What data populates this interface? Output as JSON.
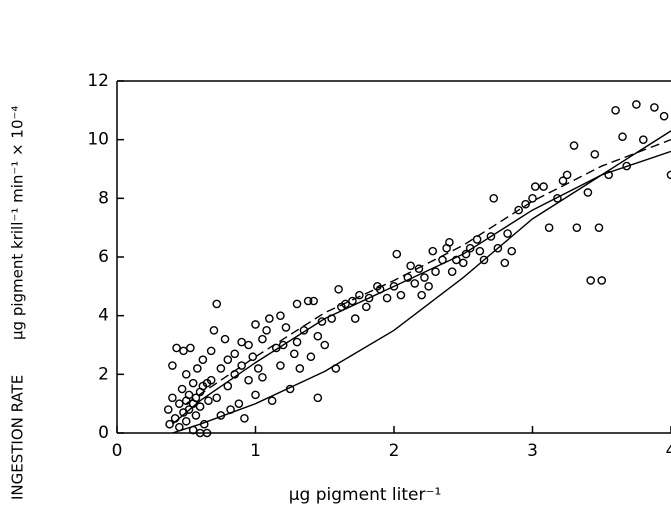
{
  "chart_data": {
    "type": "scatter",
    "x_label": "μg pigment liter⁻¹",
    "y_label": "INGESTION RATE",
    "y_label_units": "μg pigment krill⁻¹ min⁻¹ × 10⁻⁴",
    "xlim": [
      0,
      4
    ],
    "ylim": [
      0,
      12
    ],
    "xticks": [
      0,
      1,
      2,
      3,
      4
    ],
    "yticks": [
      0,
      2,
      4,
      6,
      8,
      10,
      12
    ],
    "series": [
      {
        "kind": "points",
        "color": "#000000",
        "x": [
          0.37,
          0.38,
          0.4,
          0.4,
          0.42,
          0.43,
          0.45,
          0.45,
          0.47,
          0.48,
          0.48,
          0.5,
          0.5,
          0.5,
          0.52,
          0.52,
          0.53,
          0.55,
          0.55,
          0.55,
          0.57,
          0.57,
          0.58,
          0.6,
          0.6,
          0.6,
          0.62,
          0.62,
          0.63,
          0.65,
          0.65,
          0.66,
          0.68,
          0.68,
          0.7,
          0.72,
          0.72,
          0.75,
          0.75,
          0.78,
          0.8,
          0.8,
          0.82,
          0.85,
          0.85,
          0.88,
          0.9,
          0.9,
          0.92,
          0.95,
          0.95,
          0.98,
          1.0,
          1.0,
          1.02,
          1.05,
          1.05,
          1.08,
          1.1,
          1.12,
          1.15,
          1.18,
          1.18,
          1.2,
          1.22,
          1.25,
          1.28,
          1.3,
          1.3,
          1.32,
          1.35,
          1.38,
          1.4,
          1.42,
          1.45,
          1.45,
          1.48,
          1.5,
          1.55,
          1.58,
          1.6,
          1.62,
          1.65,
          1.7,
          1.72,
          1.75,
          1.8,
          1.82,
          1.88,
          1.9,
          1.95,
          2.0,
          2.02,
          2.05,
          2.1,
          2.12,
          2.15,
          2.18,
          2.2,
          2.22,
          2.25,
          2.28,
          2.3,
          2.35,
          2.38,
          2.4,
          2.42,
          2.45,
          2.5,
          2.52,
          2.55,
          2.6,
          2.62,
          2.65,
          2.7,
          2.72,
          2.75,
          2.8,
          2.82,
          2.85,
          2.9,
          2.95,
          3.0,
          3.02,
          3.08,
          3.12,
          3.18,
          3.22,
          3.25,
          3.3,
          3.32,
          3.4,
          3.42,
          3.45,
          3.48,
          3.5,
          3.55,
          3.6,
          3.65,
          3.68,
          3.75,
          3.8,
          3.88,
          3.95,
          4.0
        ],
        "values": [
          0.8,
          0.3,
          1.2,
          2.3,
          0.5,
          2.9,
          1.0,
          0.2,
          1.5,
          0.7,
          2.8,
          1.1,
          0.4,
          2.0,
          1.3,
          0.8,
          2.9,
          1.0,
          0.1,
          1.7,
          0.6,
          1.2,
          2.2,
          1.4,
          0.9,
          0.0,
          1.6,
          2.5,
          0.3,
          1.7,
          0.0,
          1.1,
          2.8,
          1.8,
          3.5,
          1.2,
          4.4,
          2.2,
          0.6,
          3.2,
          1.6,
          2.5,
          0.8,
          2.0,
          2.7,
          1.0,
          3.1,
          2.3,
          0.5,
          1.8,
          3.0,
          2.6,
          1.3,
          3.7,
          2.2,
          3.2,
          1.9,
          3.5,
          3.9,
          1.1,
          2.9,
          4.0,
          2.3,
          3.0,
          3.6,
          1.5,
          2.7,
          4.4,
          3.1,
          2.2,
          3.5,
          4.5,
          2.6,
          4.5,
          3.3,
          1.2,
          3.8,
          3.0,
          3.9,
          2.2,
          4.9,
          4.3,
          4.4,
          4.5,
          3.9,
          4.7,
          4.3,
          4.6,
          5.0,
          4.9,
          4.6,
          5.0,
          6.1,
          4.7,
          5.3,
          5.7,
          5.1,
          5.6,
          4.7,
          5.3,
          5.0,
          6.2,
          5.5,
          5.9,
          6.3,
          6.5,
          5.5,
          5.9,
          5.8,
          6.1,
          6.3,
          6.6,
          6.2,
          5.9,
          6.7,
          8.0,
          6.3,
          5.8,
          6.8,
          6.2,
          7.6,
          7.8,
          8.0,
          8.4,
          8.4,
          7.0,
          8.0,
          8.6,
          8.8,
          9.8,
          7.0,
          8.2,
          5.2,
          9.5,
          7.0,
          5.2,
          8.8,
          11.0,
          10.1,
          9.1,
          11.2,
          10.0,
          11.1,
          10.8,
          8.8
        ]
      },
      {
        "kind": "line",
        "color": "#000000",
        "dashed": false,
        "x": [
          0.4,
          0.6,
          1,
          1.5,
          2,
          2.5,
          3,
          3.5,
          4
        ],
        "values": [
          0.3,
          1.1,
          2.4,
          3.9,
          5.0,
          6.1,
          7.6,
          8.8,
          10.3
        ]
      },
      {
        "kind": "line",
        "color": "#000000",
        "dashed": true,
        "x": [
          0.5,
          1,
          1.5,
          2,
          2.5,
          3,
          3.5,
          4
        ],
        "values": [
          1.0,
          2.6,
          4.1,
          5.2,
          6.4,
          7.9,
          9.1,
          10.0
        ]
      },
      {
        "kind": "line",
        "color": "#000000",
        "dashed": false,
        "x": [
          0.4,
          0.6,
          1,
          1.5,
          2,
          2.5,
          3,
          3.5,
          4
        ],
        "values": [
          0.0,
          0.3,
          1.0,
          2.1,
          3.5,
          5.3,
          7.3,
          8.8,
          9.6
        ]
      }
    ]
  }
}
